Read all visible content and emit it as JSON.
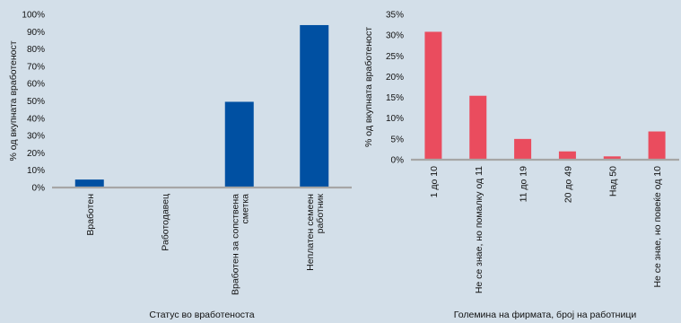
{
  "colors": {
    "background": "#d3dfe9",
    "axis": "#a6a6a6"
  },
  "chart_data": [
    {
      "type": "bar",
      "categories": [
        "Вработен",
        "Работодавец",
        "Вработен за сопствена сметка",
        "Неплатен семеен работник"
      ],
      "category_lines": [
        [
          "Вработен"
        ],
        [
          "Работодавец"
        ],
        [
          "Вработен за сопствена",
          "сметка"
        ],
        [
          "Неплатен семеен",
          "работник"
        ]
      ],
      "values": [
        4.6,
        0,
        49.5,
        93.8
      ],
      "xlabel": "Статус во вработеноста",
      "ylabel": "% од вкупната вработеност",
      "ylim": [
        0,
        100
      ],
      "yticks": [
        "0%",
        "10%",
        "20%",
        "30%",
        "40%",
        "50%",
        "60%",
        "70%",
        "80%",
        "90%",
        "100%"
      ],
      "color": "#0050a2",
      "grid": false
    },
    {
      "type": "bar",
      "categories": [
        "1 до 10",
        "Не се знае, но помалку од 11",
        "11 до 19",
        "20 до 49",
        "Над 50",
        "Не се знае, но повеќе од 10"
      ],
      "values": [
        30.8,
        15.4,
        5.0,
        2.0,
        0.8,
        6.8
      ],
      "xlabel": "Големина на фирмата, број на работници",
      "ylabel": "% од вкупната вработеност",
      "ylim": [
        0,
        35
      ],
      "yticks": [
        "0%",
        "5%",
        "10%",
        "15%",
        "20%",
        "25%",
        "30%",
        "35%"
      ],
      "color": "#ea4c5e",
      "grid": false
    }
  ]
}
